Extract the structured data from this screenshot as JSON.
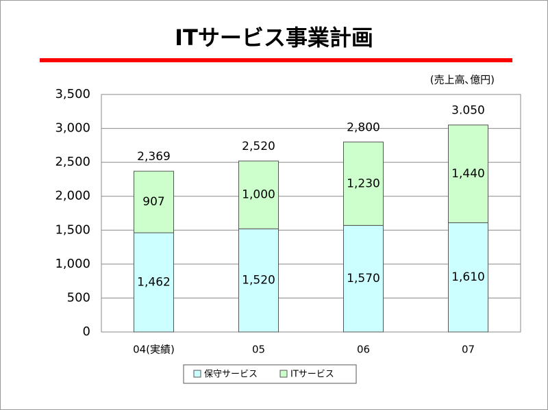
{
  "chart_data": {
    "type": "stacked_bar",
    "title": "ITサービス事業計画",
    "unit_note": "(売上高､億円)",
    "categories": [
      "04(実績)",
      "05",
      "06",
      "07"
    ],
    "series": [
      {
        "name": "保守サービス",
        "color": "#ccffff",
        "values": [
          1462,
          1520,
          1570,
          1610
        ],
        "value_labels": [
          "1,462",
          "1,520",
          "1,570",
          "1,610"
        ]
      },
      {
        "name": "ITサービス",
        "color": "#ccffcc",
        "values": [
          907,
          1000,
          1230,
          1440
        ],
        "value_labels": [
          "907",
          "1,000",
          "1,230",
          "1,440"
        ]
      }
    ],
    "totals": {
      "values": [
        2369,
        2520,
        2800,
        3050
      ],
      "value_labels": [
        "2,369",
        "2,520",
        "2,800",
        "3.050"
      ]
    },
    "ylim": [
      0,
      3500
    ],
    "yticks": [
      0,
      500,
      {
        "value": 1000,
        "label": "1,000"
      },
      {
        "value": 1500,
        "label": "1,500"
      },
      {
        "value": 2000,
        "label": "2,000"
      },
      {
        "value": 2500,
        "label": "2,500"
      },
      {
        "value": 3000,
        "label": "3,000"
      },
      {
        "value": 3500,
        "label": "3,500"
      }
    ],
    "grid": true,
    "legend": "bottom"
  }
}
